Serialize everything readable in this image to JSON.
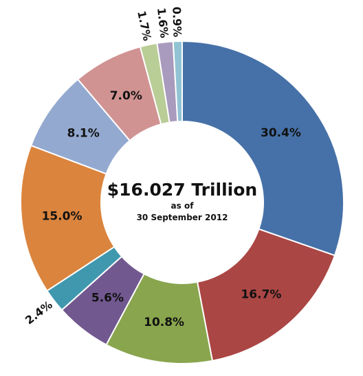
{
  "chart_data": {
    "type": "pie",
    "donut": true,
    "center_title": "$16.027 Trillion",
    "center_line1": "as of",
    "center_line2": "30 September 2012",
    "slices": [
      {
        "value": 30.4,
        "label": "30.4%",
        "color": "#4671a8"
      },
      {
        "value": 16.7,
        "label": "16.7%",
        "color": "#aa4644"
      },
      {
        "value": 10.8,
        "label": "10.8%",
        "color": "#89a54e"
      },
      {
        "value": 5.6,
        "label": "5.6%",
        "color": "#71588f"
      },
      {
        "value": 2.4,
        "label": "2.4%",
        "color": "#4098af"
      },
      {
        "value": 15.0,
        "label": "15.0%",
        "color": "#db843d"
      },
      {
        "value": 8.1,
        "label": "8.1%",
        "color": "#93a9d0"
      },
      {
        "value": 7.0,
        "label": "7.0%",
        "color": "#d09392"
      },
      {
        "value": 1.7,
        "label": "1.7%",
        "color": "#b9cd96"
      },
      {
        "value": 1.6,
        "label": "1.6%",
        "color": "#a99bbd"
      },
      {
        "value": 0.9,
        "label": "0.9%",
        "color": "#92c3d4"
      }
    ]
  }
}
